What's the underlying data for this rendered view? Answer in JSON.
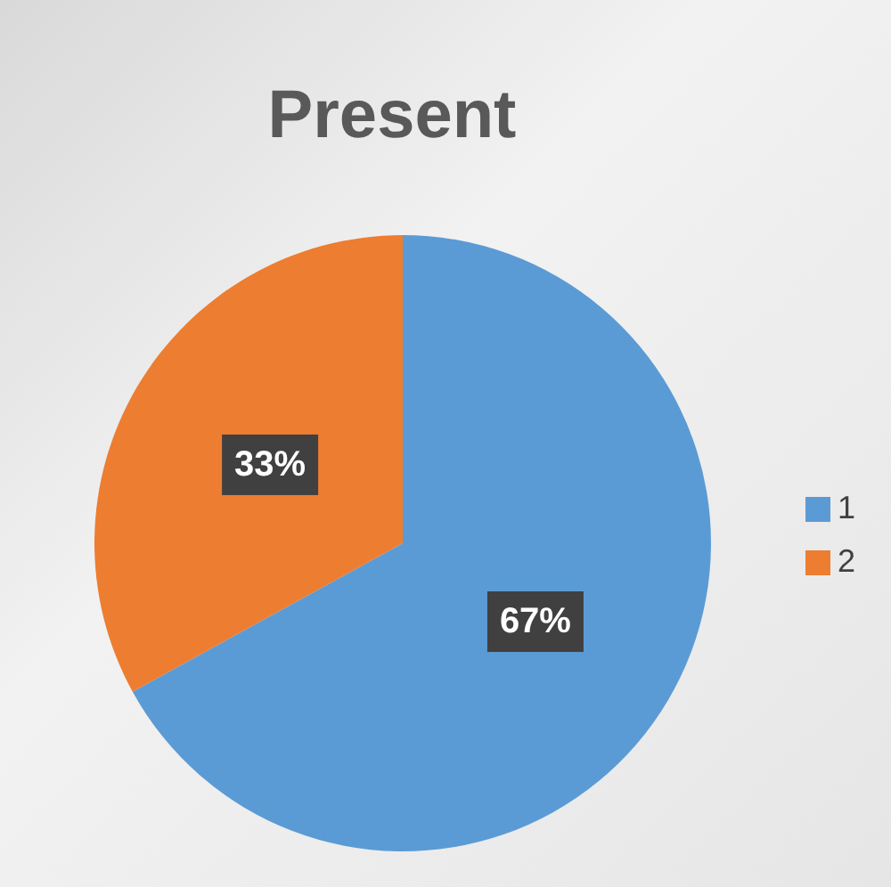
{
  "chart_data": {
    "type": "pie",
    "title": "Present",
    "categories": [
      "1",
      "2"
    ],
    "values": [
      67,
      33
    ],
    "colors": [
      "#5b9bd5",
      "#ed7d31"
    ],
    "value_labels": [
      "67%",
      "33%"
    ],
    "legend": "right"
  }
}
